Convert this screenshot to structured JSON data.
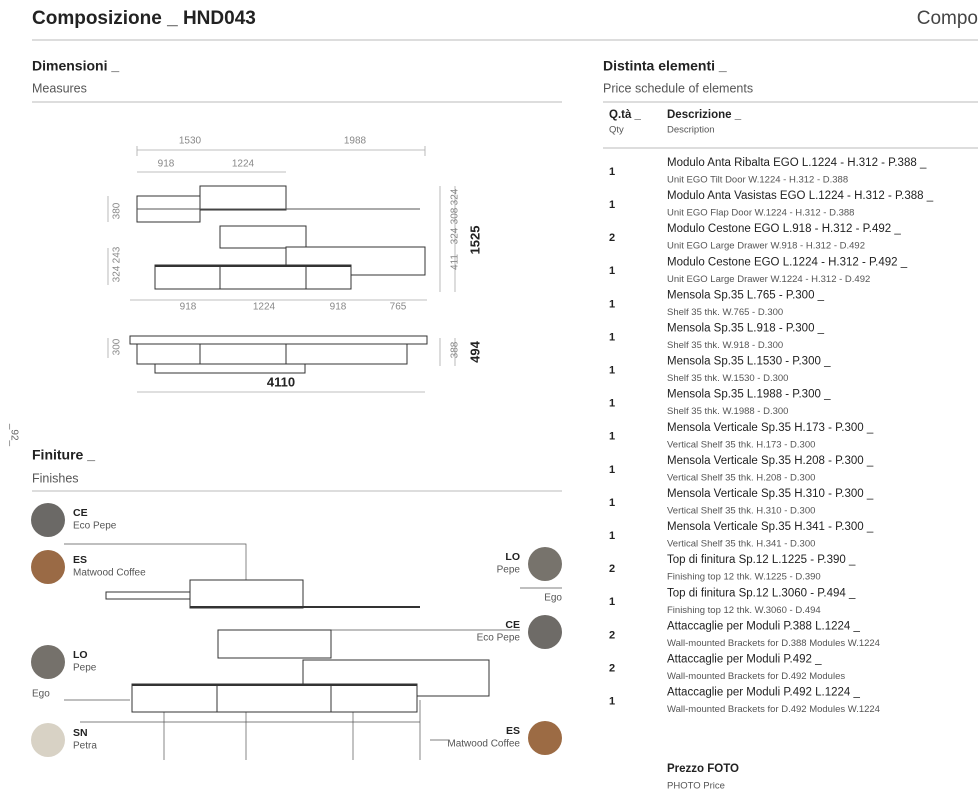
{
  "header": {
    "title": "Composizione _ HND043",
    "next_title": "Compo",
    "page_number": "_92_"
  },
  "dimensions": {
    "title": "Dimensioni _",
    "subtitle": "Measures",
    "labels": [
      "1530",
      "1988",
      "918",
      "1224",
      "380",
      "324",
      "243",
      "324",
      "308",
      "324",
      "411",
      "1525",
      "918",
      "1224",
      "918",
      "765",
      "300",
      "388",
      "494",
      "4110"
    ]
  },
  "finishes": {
    "title": "Finiture _",
    "subtitle": "Finishes",
    "swatches": [
      {
        "code": "CE",
        "name": "Eco Pepe"
      },
      {
        "code": "ES",
        "name": "Matwood Coffee"
      },
      {
        "code": "LO",
        "name": "Pepe"
      },
      {
        "code": "CE",
        "name": "Eco Pepe"
      },
      {
        "code": "LO",
        "name": "Pepe"
      },
      {
        "code": "SN",
        "name": "Petra"
      },
      {
        "code": "ES",
        "name": "Matwood Coffee"
      }
    ],
    "labels": [
      "Ego",
      "Ego"
    ]
  },
  "elements": {
    "title": "Distinta elementi _",
    "subtitle": "Price schedule of elements",
    "columns": [
      {
        "label": "Q.tà _",
        "sub": "Qty"
      },
      {
        "label": "Descrizione _",
        "sub": "Description"
      }
    ],
    "rows": [
      {
        "qty": 1,
        "it": "Modulo Anta Ribalta EGO L.1224 - H.312 - P.388 _",
        "en": "Unit EGO Tilt Door W.1224 - H.312 - D.388"
      },
      {
        "qty": 1,
        "it": "Modulo Anta Vasistas EGO L.1224 - H.312 - P.388 _",
        "en": "Unit EGO Flap Door W.1224 - H.312 - D.388"
      },
      {
        "qty": 2,
        "it": "Modulo Cestone EGO L.918 - H.312 - P.492 _",
        "en": "Unit EGO Large Drawer W.918 - H.312 - D.492"
      },
      {
        "qty": 1,
        "it": "Modulo Cestone EGO L.1224 - H.312 - P.492 _",
        "en": "Unit EGO Large Drawer W.1224 - H.312 - D.492"
      },
      {
        "qty": 1,
        "it": "Mensola Sp.35 L.765 - P.300 _",
        "en": "Shelf 35 thk. W.765 - D.300"
      },
      {
        "qty": 1,
        "it": "Mensola Sp.35 L.918 - P.300 _",
        "en": "Shelf 35 thk. W.918 - D.300"
      },
      {
        "qty": 1,
        "it": "Mensola Sp.35 L.1530 - P.300 _",
        "en": "Shelf 35 thk. W.1530 - D.300"
      },
      {
        "qty": 1,
        "it": "Mensola Sp.35 L.1988 - P.300 _",
        "en": "Shelf 35 thk. W.1988 - D.300"
      },
      {
        "qty": 1,
        "it": "Mensola Verticale Sp.35 H.173 - P.300 _",
        "en": "Vertical Shelf 35 thk. H.173 - D.300"
      },
      {
        "qty": 1,
        "it": "Mensola Verticale Sp.35 H.208 - P.300 _",
        "en": "Vertical Shelf 35 thk. H.208 - D.300"
      },
      {
        "qty": 1,
        "it": "Mensola Verticale Sp.35 H.310 - P.300 _",
        "en": "Vertical Shelf 35 thk. H.310 - D.300"
      },
      {
        "qty": 1,
        "it": "Mensola Verticale Sp.35 H.341 - P.300 _",
        "en": "Vertical Shelf 35 thk. H.341 - D.300"
      },
      {
        "qty": 2,
        "it": "Top di finitura Sp.12 L.1225 - P.390 _",
        "en": "Finishing top 12 thk. W.1225 - D.390"
      },
      {
        "qty": 1,
        "it": "Top di finitura Sp.12 L.3060 - P.494 _",
        "en": "Finishing top 12 thk. W.3060 - D.494"
      },
      {
        "qty": 2,
        "it": "Attaccaglie per Moduli P.388 L.1224 _",
        "en": "Wall-mounted Brackets for D.388 Modules W.1224"
      },
      {
        "qty": 2,
        "it": "Attaccaglie per Moduli P.492 _",
        "en": "Wall-mounted Brackets for D.492 Modules"
      },
      {
        "qty": 1,
        "it": "Attaccaglie per Moduli P.492 L.1224 _",
        "en": "Wall-mounted Brackets for D.492 Modules W.1224"
      }
    ],
    "price": {
      "label": "Prezzo FOTO",
      "sub": "PHOTO Price"
    }
  }
}
